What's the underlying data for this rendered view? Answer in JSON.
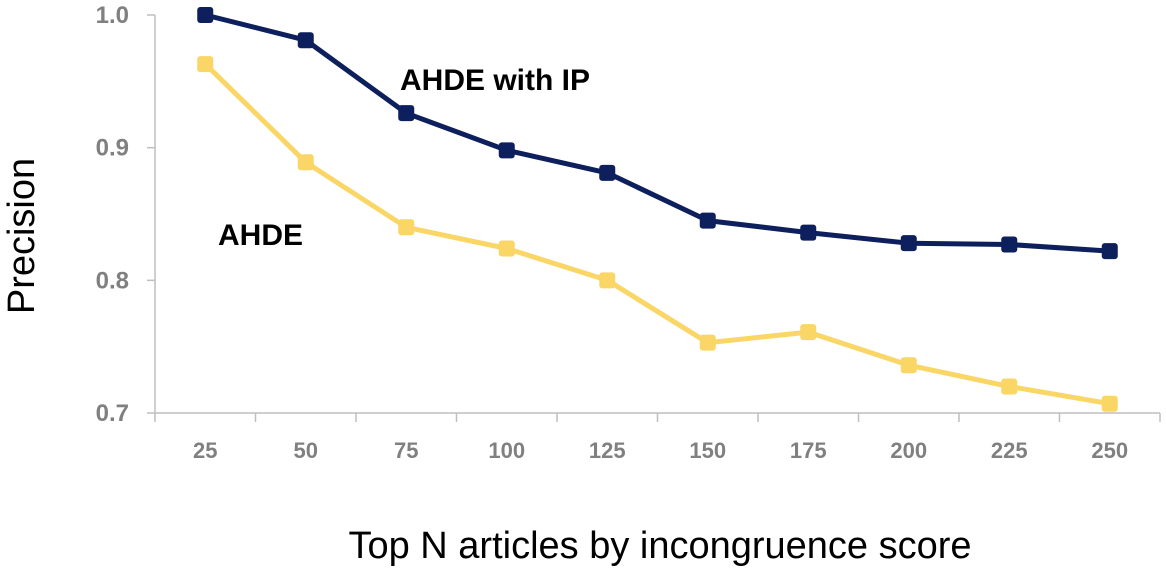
{
  "chart_data": {
    "type": "line",
    "title": "",
    "xlabel": "Top N articles by incongruence score",
    "ylabel": "Precision",
    "categories": [
      "25",
      "50",
      "75",
      "100",
      "125",
      "150",
      "175",
      "200",
      "225",
      "250"
    ],
    "ylim": [
      0.7,
      1.0
    ],
    "yticks": [
      "0.7",
      "0.8",
      "0.9",
      "1.0"
    ],
    "grid": false,
    "legend": "none",
    "series": [
      {
        "name": "AHDE with IP",
        "color": "#0d1f5c",
        "values": [
          1.0,
          0.981,
          0.926,
          0.898,
          0.881,
          0.845,
          0.836,
          0.828,
          0.827,
          0.822
        ]
      },
      {
        "name": "AHDE",
        "color": "#fad666",
        "values": [
          0.963,
          0.889,
          0.84,
          0.824,
          0.8,
          0.753,
          0.761,
          0.736,
          0.72,
          0.707
        ]
      }
    ]
  }
}
